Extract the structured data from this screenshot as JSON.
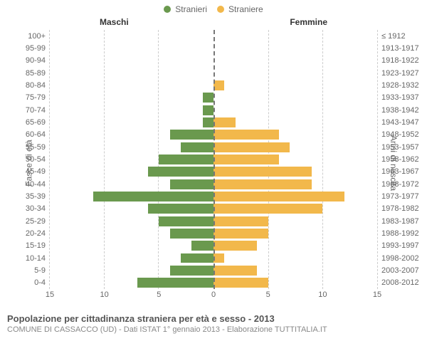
{
  "chart": {
    "type": "population-pyramid",
    "legend": [
      {
        "label": "Stranieri",
        "color": "#6a994e"
      },
      {
        "label": "Straniere",
        "color": "#f2b84b"
      }
    ],
    "column_headers": {
      "left": "Maschi",
      "right": "Femmine"
    },
    "y_axis_left_label": "Fasce di età",
    "y_axis_right_label": "Anni di nascita",
    "x_max": 15,
    "x_ticks": [
      15,
      10,
      5,
      0,
      5,
      10,
      15
    ],
    "grid_color": "#cccccc",
    "center_line_color": "#777777",
    "background_color": "#ffffff",
    "label_fontsize": 11,
    "header_fontsize": 12,
    "rows": [
      {
        "age": "100+",
        "years": "≤ 1912",
        "male": 0,
        "female": 0
      },
      {
        "age": "95-99",
        "years": "1913-1917",
        "male": 0,
        "female": 0
      },
      {
        "age": "90-94",
        "years": "1918-1922",
        "male": 0,
        "female": 0
      },
      {
        "age": "85-89",
        "years": "1923-1927",
        "male": 0,
        "female": 0
      },
      {
        "age": "80-84",
        "years": "1928-1932",
        "male": 0,
        "female": 1
      },
      {
        "age": "75-79",
        "years": "1933-1937",
        "male": 1,
        "female": 0
      },
      {
        "age": "70-74",
        "years": "1938-1942",
        "male": 1,
        "female": 0
      },
      {
        "age": "65-69",
        "years": "1943-1947",
        "male": 1,
        "female": 2
      },
      {
        "age": "60-64",
        "years": "1948-1952",
        "male": 4,
        "female": 6
      },
      {
        "age": "55-59",
        "years": "1953-1957",
        "male": 3,
        "female": 7
      },
      {
        "age": "50-54",
        "years": "1958-1962",
        "male": 5,
        "female": 6
      },
      {
        "age": "45-49",
        "years": "1963-1967",
        "male": 6,
        "female": 9
      },
      {
        "age": "40-44",
        "years": "1968-1972",
        "male": 4,
        "female": 9
      },
      {
        "age": "35-39",
        "years": "1973-1977",
        "male": 11,
        "female": 12
      },
      {
        "age": "30-34",
        "years": "1978-1982",
        "male": 6,
        "female": 10
      },
      {
        "age": "25-29",
        "years": "1983-1987",
        "male": 5,
        "female": 5
      },
      {
        "age": "20-24",
        "years": "1988-1992",
        "male": 4,
        "female": 5
      },
      {
        "age": "15-19",
        "years": "1993-1997",
        "male": 2,
        "female": 4
      },
      {
        "age": "10-14",
        "years": "1998-2002",
        "male": 3,
        "female": 1
      },
      {
        "age": "5-9",
        "years": "2003-2007",
        "male": 4,
        "female": 4
      },
      {
        "age": "0-4",
        "years": "2008-2012",
        "male": 7,
        "female": 5
      }
    ]
  },
  "footer": {
    "title": "Popolazione per cittadinanza straniera per età e sesso - 2013",
    "subtitle": "COMUNE DI CASSACCO (UD) - Dati ISTAT 1° gennaio 2013 - Elaborazione TUTTITALIA.IT"
  }
}
